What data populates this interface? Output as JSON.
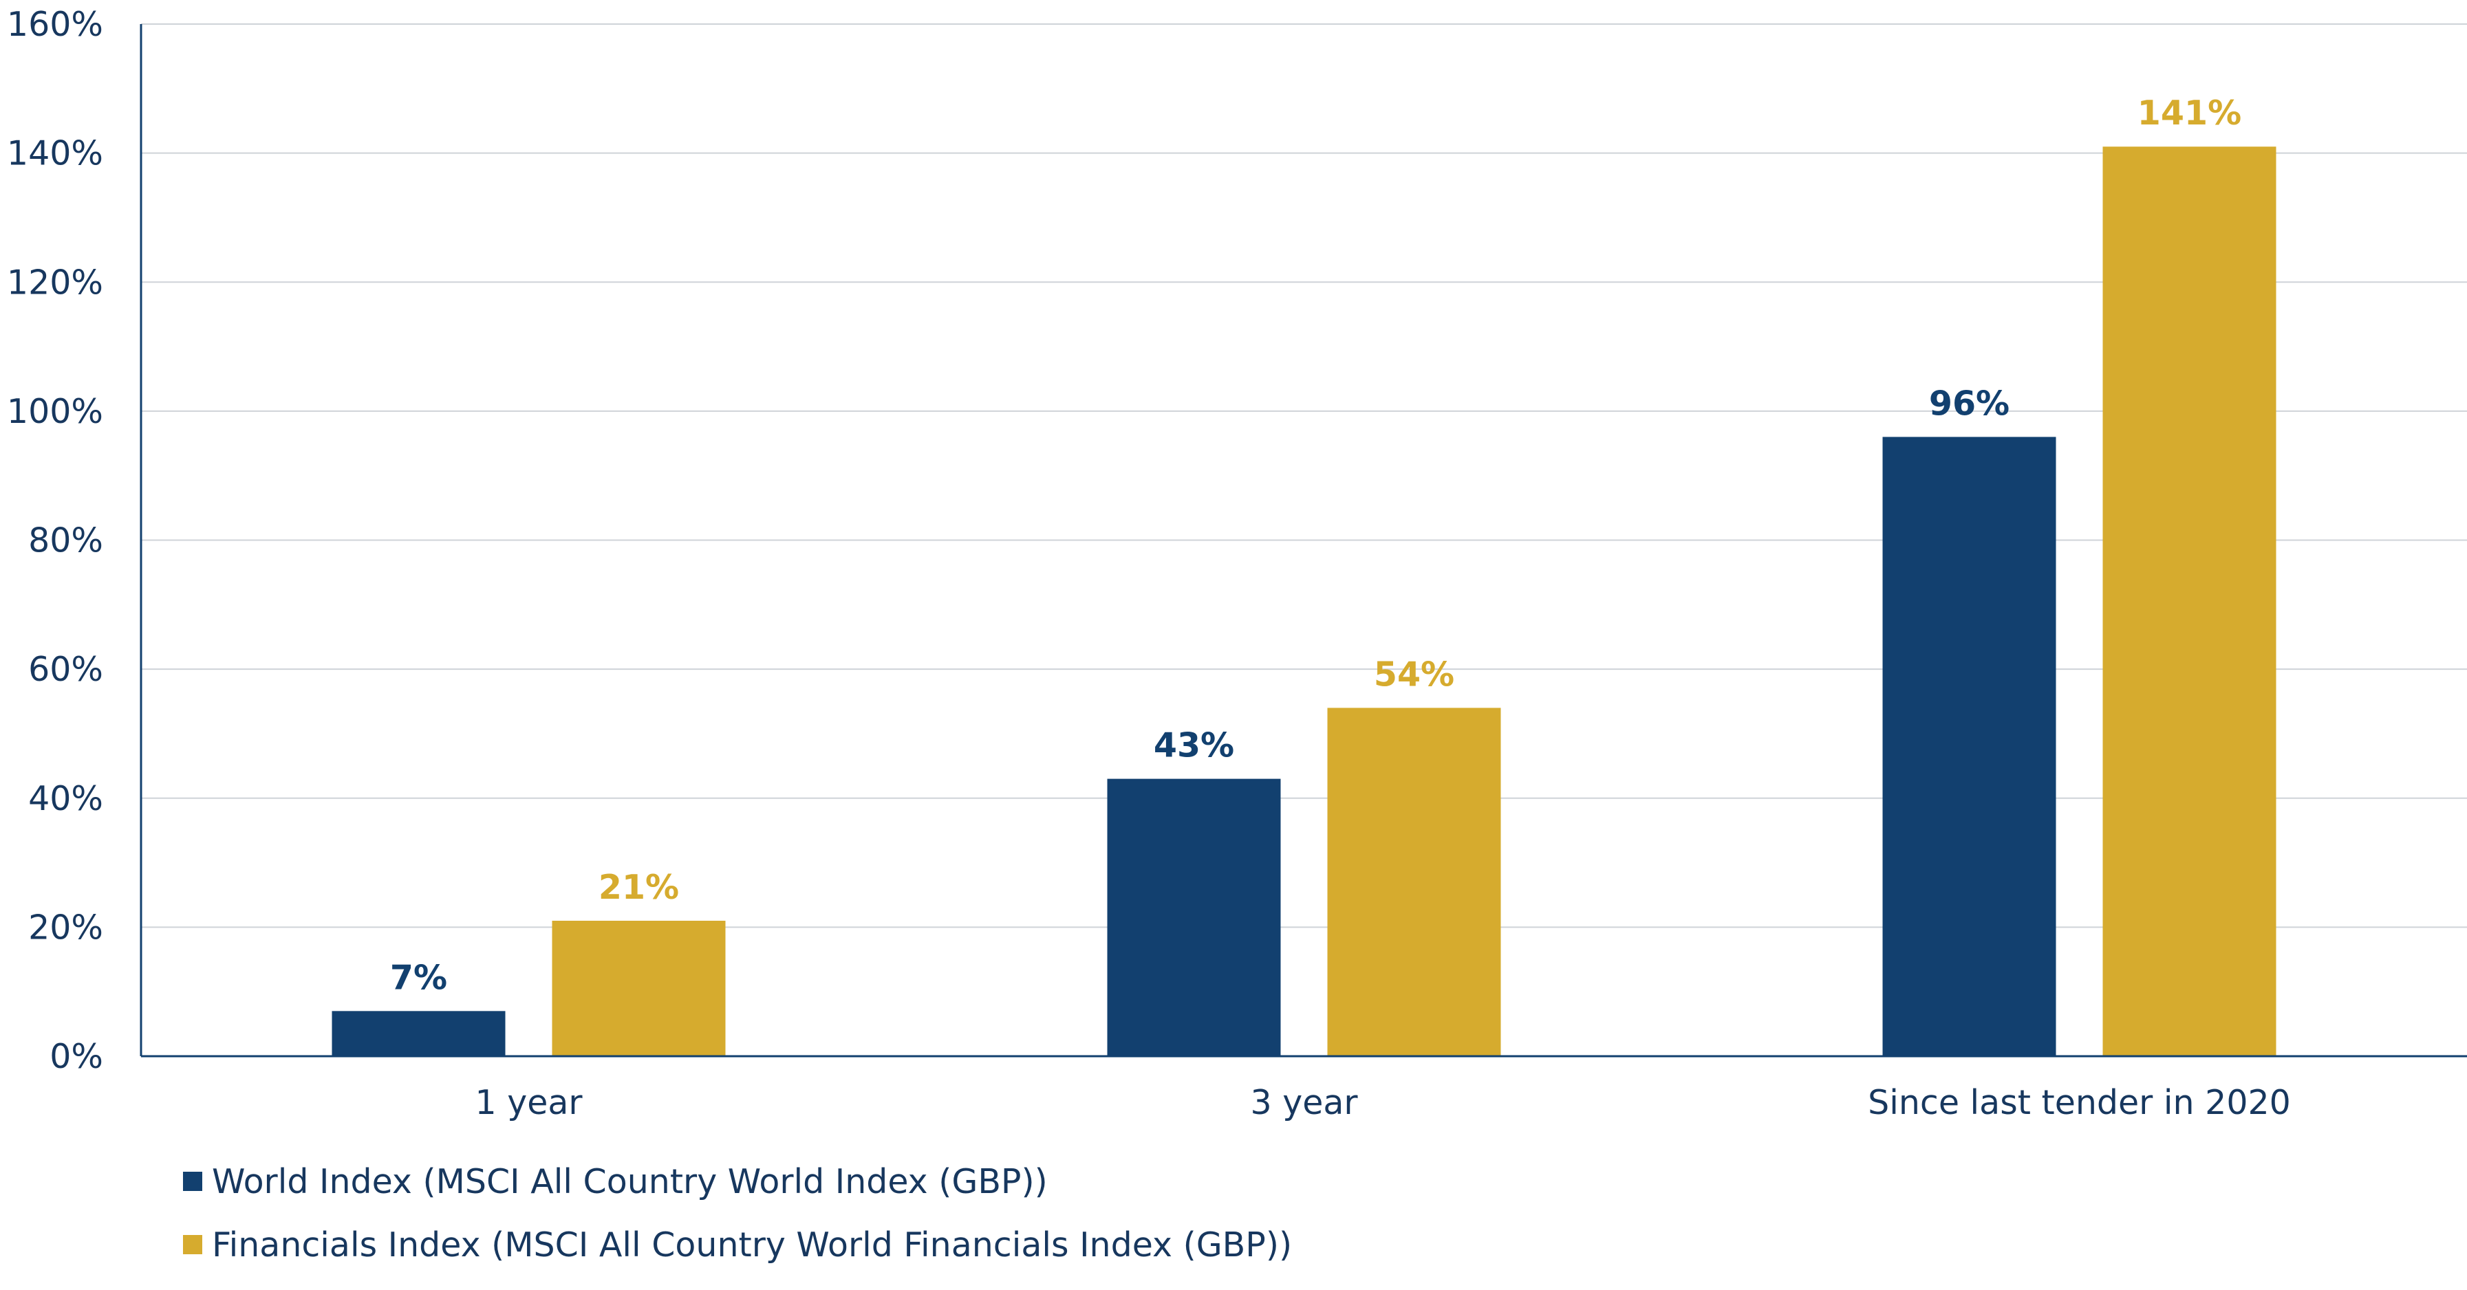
{
  "chart_data": {
    "type": "bar",
    "title": "",
    "xlabel": "",
    "ylabel": "",
    "categories": [
      "1 year",
      "3 year",
      "Since last tender in 2020"
    ],
    "ylim": [
      0,
      160
    ],
    "yticks": [
      0,
      20,
      40,
      60,
      80,
      100,
      120,
      140,
      160
    ],
    "ytick_labels": [
      "0%",
      "20%",
      "40%",
      "60%",
      "80%",
      "100%",
      "120%",
      "140%",
      "160%"
    ],
    "grid": true,
    "legend_position": "bottom-left",
    "series": [
      {
        "name": "World Index (MSCI All Country World Index (GBP))",
        "values": [
          7,
          43,
          96
        ],
        "value_labels": [
          "7%",
          "43%",
          "96%"
        ],
        "color": "#12406f"
      },
      {
        "name": "Financials Index (MSCI All Country World Financials Index (GBP))",
        "values": [
          21,
          54,
          141
        ],
        "value_labels": [
          "21%",
          "54%",
          "141%"
        ],
        "color": "#d6ab2e"
      }
    ],
    "colors": {
      "axis_text": "#17375e",
      "gridline": "#cfd3d8",
      "axis_line": "#12406f"
    }
  }
}
